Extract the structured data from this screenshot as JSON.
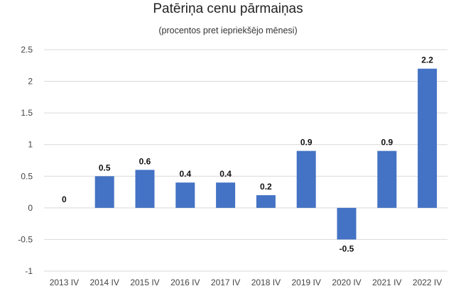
{
  "chart_data": {
    "type": "bar",
    "title": "Patēriņa cenu pārmaiņas",
    "subtitle": "(procentos pret iepriekšējo mēnesi)",
    "categories": [
      "2013 IV",
      "2014 IV",
      "2015 IV",
      "2016 IV",
      "2017 IV",
      "2018 IV",
      "2019 IV",
      "2020 IV",
      "2021 IV",
      "2022 IV"
    ],
    "values": [
      0,
      0.5,
      0.6,
      0.4,
      0.4,
      0.2,
      0.9,
      -0.5,
      0.9,
      2.2
    ],
    "data_labels": [
      "0",
      "0.5",
      "0.6",
      "0.4",
      "0.4",
      "0.2",
      "0.9",
      "-0.5",
      "0.9",
      "2.2"
    ],
    "yticks": [
      2.5,
      2,
      1.5,
      1,
      0.5,
      0,
      -0.5,
      -1
    ],
    "ytick_labels": [
      "2.5",
      "2",
      "1.5",
      "1",
      "0.5",
      "0",
      "-0.5",
      "-1"
    ],
    "ylim": [
      -1,
      2.5
    ],
    "grid": true,
    "legend": "none",
    "colors": {
      "bar": "#4472c4",
      "grid": "#d9d9d9"
    }
  }
}
